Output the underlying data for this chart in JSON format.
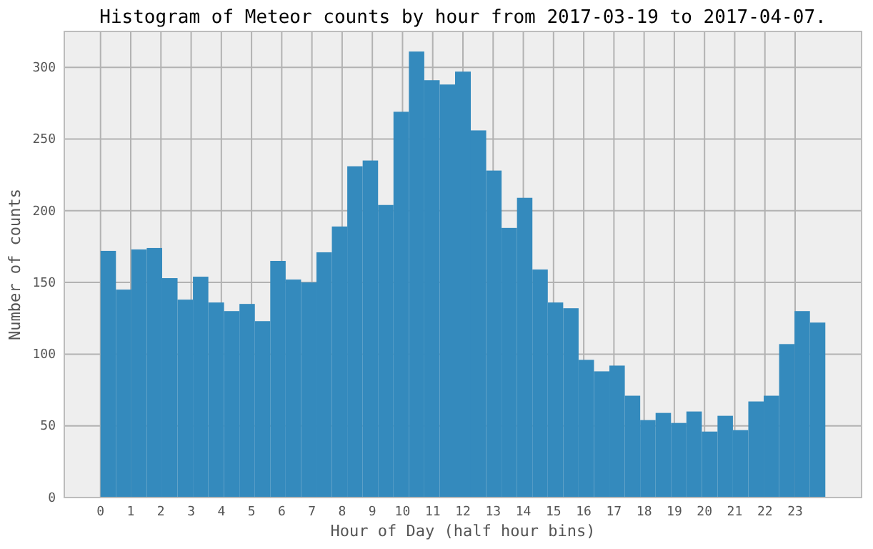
{
  "chart_data": {
    "type": "histogram",
    "title": "Histogram of Meteor counts by hour from 2017-03-19 to 2017-04-07.",
    "xlabel": "Hour of Day (half hour bins)",
    "ylabel": "Number of counts",
    "bins": [
      0,
      0.51,
      1.02,
      1.53,
      2.04,
      2.55,
      3.06,
      3.57,
      4.09,
      4.6,
      5.11,
      5.62,
      6.13,
      6.64,
      7.15,
      7.66,
      8.17,
      8.68,
      9.19,
      9.7,
      10.21,
      10.72,
      11.23,
      11.74,
      12.26,
      12.77,
      13.28,
      13.79,
      14.3,
      14.81,
      15.32,
      15.83,
      16.34,
      16.85,
      17.36,
      17.87,
      18.38,
      18.89,
      19.4,
      19.91,
      20.43,
      20.94,
      21.45,
      21.96,
      22.47,
      22.98,
      23.49,
      24
    ],
    "values": [
      172,
      145,
      173,
      174,
      153,
      138,
      154,
      136,
      130,
      135,
      123,
      165,
      152,
      150,
      171,
      189,
      231,
      235,
      204,
      269,
      311,
      291,
      288,
      297,
      256,
      228,
      188,
      209,
      159,
      136,
      132,
      96,
      88,
      92,
      71,
      54,
      59,
      52,
      60,
      46,
      57,
      47,
      67,
      71,
      107,
      130,
      122
    ],
    "color": "#348abd",
    "xlim": [
      -1.2,
      25.2
    ],
    "ylim": [
      0,
      325
    ],
    "xticks": [
      0,
      1,
      2,
      3,
      4,
      5,
      6,
      7,
      8,
      9,
      10,
      11,
      12,
      13,
      14,
      15,
      16,
      17,
      18,
      19,
      20,
      21,
      22,
      23
    ],
    "yticks": [
      0,
      50,
      100,
      150,
      200,
      250,
      300
    ],
    "grid": true
  }
}
